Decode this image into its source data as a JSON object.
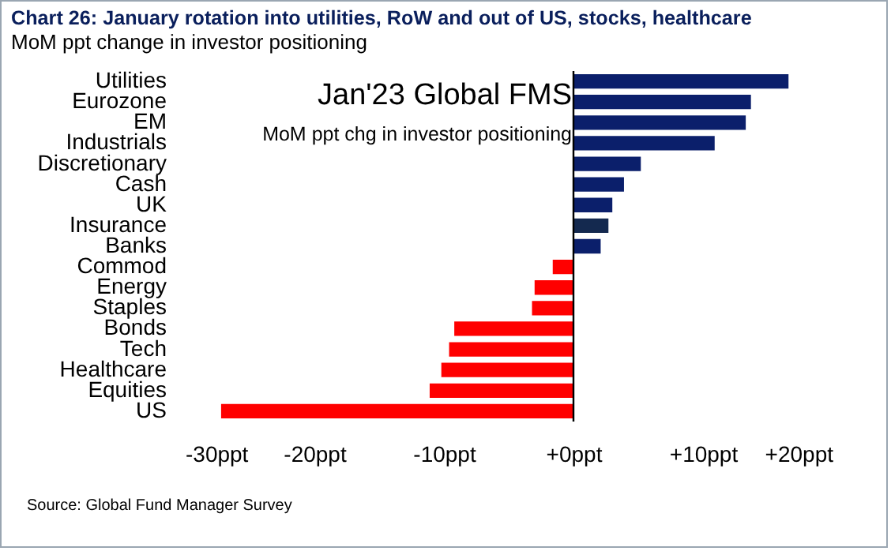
{
  "chart_data": {
    "type": "bar",
    "orientation": "horizontal",
    "title": "Chart 26: January rotation into utilities, RoW and out of US, stocks, healthcare",
    "subtitle": "MoM ppt change in investor positioning",
    "categories": [
      "Utilities",
      "Eurozone",
      "EM",
      "Industrials",
      "Discretionary",
      "Cash",
      "UK",
      "Insurance",
      "Banks",
      "Commod",
      "Energy",
      "Staples",
      "Bonds",
      "Tech",
      "Healthcare",
      "Equities",
      "US"
    ],
    "values": [
      16.6,
      13.7,
      13.3,
      10.9,
      5.2,
      3.9,
      3.0,
      2.7,
      2.1,
      -1.6,
      -3.0,
      -3.2,
      -9.2,
      -9.6,
      -10.2,
      -11.1,
      -27.2
    ],
    "colors": [
      "#0b1f6b",
      "#0b1f6b",
      "#0b1f6b",
      "#0b1f6b",
      "#0b1f6b",
      "#0b1f6b",
      "#0b1f6b",
      "#14294f",
      "#0b1f6b",
      "#ff0000",
      "#ff0000",
      "#ff0000",
      "#ff0000",
      "#ff0000",
      "#ff0000",
      "#ff0000",
      "#ff0000"
    ],
    "xlim": [
      -30,
      20
    ],
    "xticks": [
      {
        "value": -30,
        "label": "-30ppt"
      },
      {
        "value": -20,
        "label": "-20ppt"
      },
      {
        "value": -10,
        "label": "-10ppt"
      },
      {
        "value": 0,
        "label": "+0ppt"
      },
      {
        "value": 10,
        "label": "+10ppt"
      },
      {
        "value": 20,
        "label": "+20ppt"
      }
    ],
    "annotations": [
      "Jan'23 Global FMS",
      "MoM ppt chg in investor positioning",
      "Source: Global Fund Manager Survey"
    ]
  }
}
